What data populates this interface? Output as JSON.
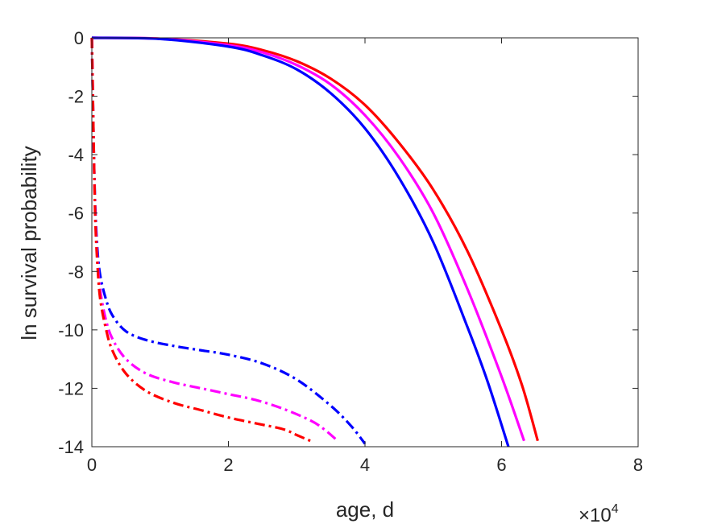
{
  "chart_data": {
    "type": "line",
    "title": "",
    "xlabel": "age, d",
    "ylabel": "ln survival probability",
    "x_exponent_label": {
      "base": "×10",
      "power": "4"
    },
    "xlim": [
      0,
      80000
    ],
    "ylim": [
      -14,
      0
    ],
    "x_ticks": [
      0,
      20000,
      40000,
      60000,
      80000
    ],
    "x_tick_labels": [
      "0",
      "2",
      "4",
      "6",
      "8"
    ],
    "y_ticks": [
      0,
      -2,
      -4,
      -6,
      -8,
      -10,
      -12,
      -14
    ],
    "y_tick_labels": [
      "0",
      "-2",
      "-4",
      "-6",
      "-8",
      "-10",
      "-12",
      "-14"
    ],
    "grid": false,
    "series": [
      {
        "color": "#ff0000",
        "style": "solid",
        "x": [
          0,
          10000,
          20000,
          25000,
          30000,
          35000,
          40000,
          45000,
          50000,
          55000,
          60000,
          63000,
          65300
        ],
        "y": [
          0,
          -0.03,
          -0.2,
          -0.42,
          -0.8,
          -1.4,
          -2.3,
          -3.6,
          -5.2,
          -7.3,
          -10.0,
          -11.9,
          -13.8
        ]
      },
      {
        "color": "#ff00ff",
        "style": "solid",
        "x": [
          0,
          10000,
          20000,
          25000,
          30000,
          35000,
          40000,
          45000,
          50000,
          55000,
          60000,
          63300
        ],
        "y": [
          0,
          -0.03,
          -0.25,
          -0.5,
          -0.93,
          -1.6,
          -2.65,
          -4.1,
          -6.0,
          -8.6,
          -11.6,
          -13.8
        ]
      },
      {
        "color": "#0000ff",
        "style": "solid",
        "x": [
          0,
          10000,
          20000,
          25000,
          30000,
          35000,
          40000,
          45000,
          50000,
          55000,
          58000,
          61000
        ],
        "y": [
          0,
          -0.04,
          -0.3,
          -0.6,
          -1.08,
          -1.9,
          -3.1,
          -4.8,
          -7.0,
          -9.9,
          -11.8,
          -14.0
        ]
      },
      {
        "color": "#0000ff",
        "style": "dashdot",
        "x": [
          0,
          150,
          300,
          500,
          800,
          1200,
          2000,
          3000,
          5000,
          8000,
          12000,
          16000,
          20000,
          25000,
          30000,
          35000,
          38000,
          40000
        ],
        "y": [
          0,
          -2.0,
          -4.0,
          -5.8,
          -7.2,
          -8.1,
          -8.9,
          -9.5,
          -10.05,
          -10.35,
          -10.55,
          -10.7,
          -10.85,
          -11.15,
          -11.7,
          -12.6,
          -13.3,
          -13.9
        ]
      },
      {
        "color": "#ff00ff",
        "style": "dashdot",
        "x": [
          0,
          150,
          300,
          500,
          800,
          1200,
          2000,
          3000,
          5000,
          8000,
          12000,
          16000,
          20000,
          24000,
          28000,
          32000,
          34000,
          36000
        ],
        "y": [
          0,
          -2.0,
          -4.0,
          -6.0,
          -7.5,
          -8.6,
          -9.6,
          -10.3,
          -11.0,
          -11.5,
          -11.8,
          -12.0,
          -12.2,
          -12.4,
          -12.7,
          -13.1,
          -13.4,
          -13.8
        ]
      },
      {
        "color": "#ff0000",
        "style": "dashdot",
        "x": [
          0,
          150,
          300,
          500,
          800,
          1200,
          2000,
          3000,
          5000,
          8000,
          12000,
          16000,
          20000,
          24000,
          28000,
          30000,
          32000
        ],
        "y": [
          0,
          -2.0,
          -4.0,
          -6.2,
          -7.7,
          -8.9,
          -9.9,
          -10.7,
          -11.5,
          -12.1,
          -12.5,
          -12.75,
          -13.0,
          -13.2,
          -13.4,
          -13.6,
          -13.8
        ]
      }
    ]
  }
}
